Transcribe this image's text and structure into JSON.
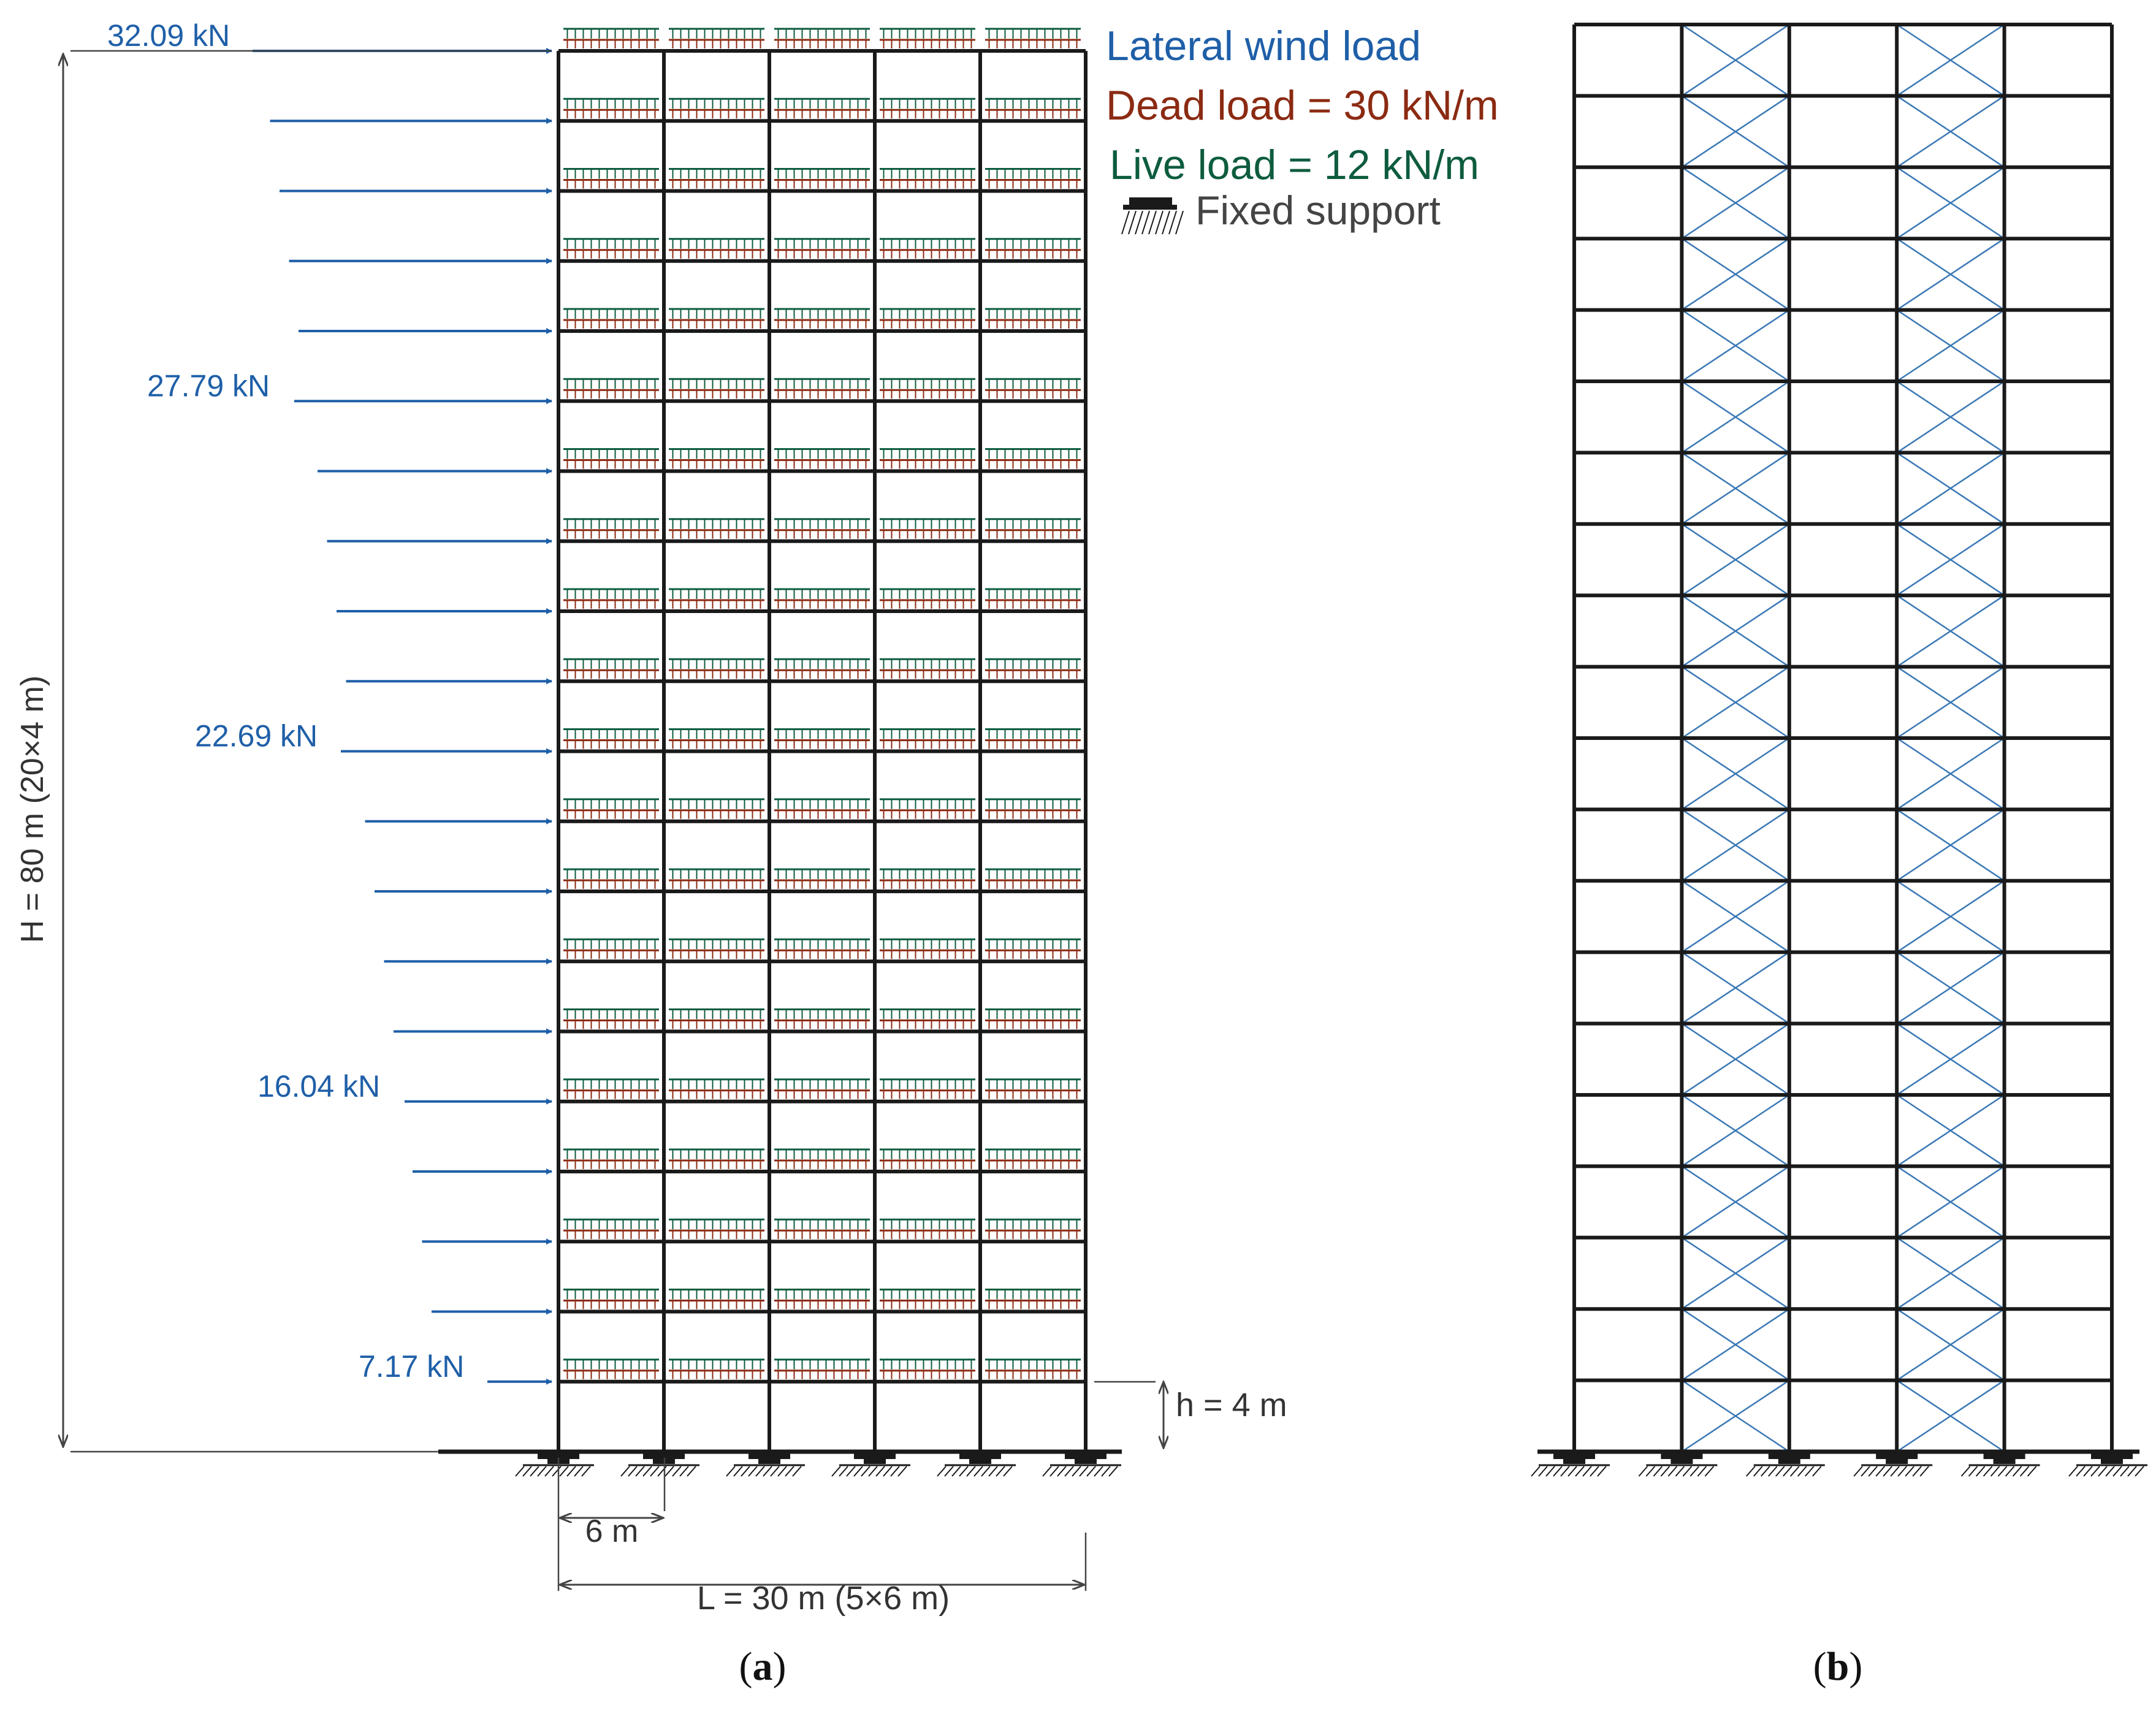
{
  "figure_a": {
    "wind_labels": [
      "32.09 kN",
      "27.79 kN",
      "22.69 kN",
      "16.04 kN",
      "7.17 kN"
    ],
    "height_label": "H = 80 m (20×4 m)",
    "story_height_label": "h = 4 m",
    "bay_width_label": "6 m",
    "total_width_label": "L = 30 m (5×6 m)",
    "caption": "(a)",
    "caption_letter": "a"
  },
  "legend": {
    "wind": "Lateral wind load",
    "dead": "Dead load = 30 kN/m",
    "live": "Live load = 12 kN/m",
    "support": "Fixed support"
  },
  "figure_b": {
    "caption": "(b)",
    "caption_letter": "b",
    "braced_bays": [
      2,
      4
    ]
  },
  "structure": {
    "stories": 20,
    "bays": 5
  },
  "colors": {
    "frame": "#1a1a1a",
    "wind": "#1f5fa8",
    "dead": "#8b2a12",
    "live": "#0d5c3e",
    "dimension": "#444444",
    "bracing": "#3a78b5"
  }
}
